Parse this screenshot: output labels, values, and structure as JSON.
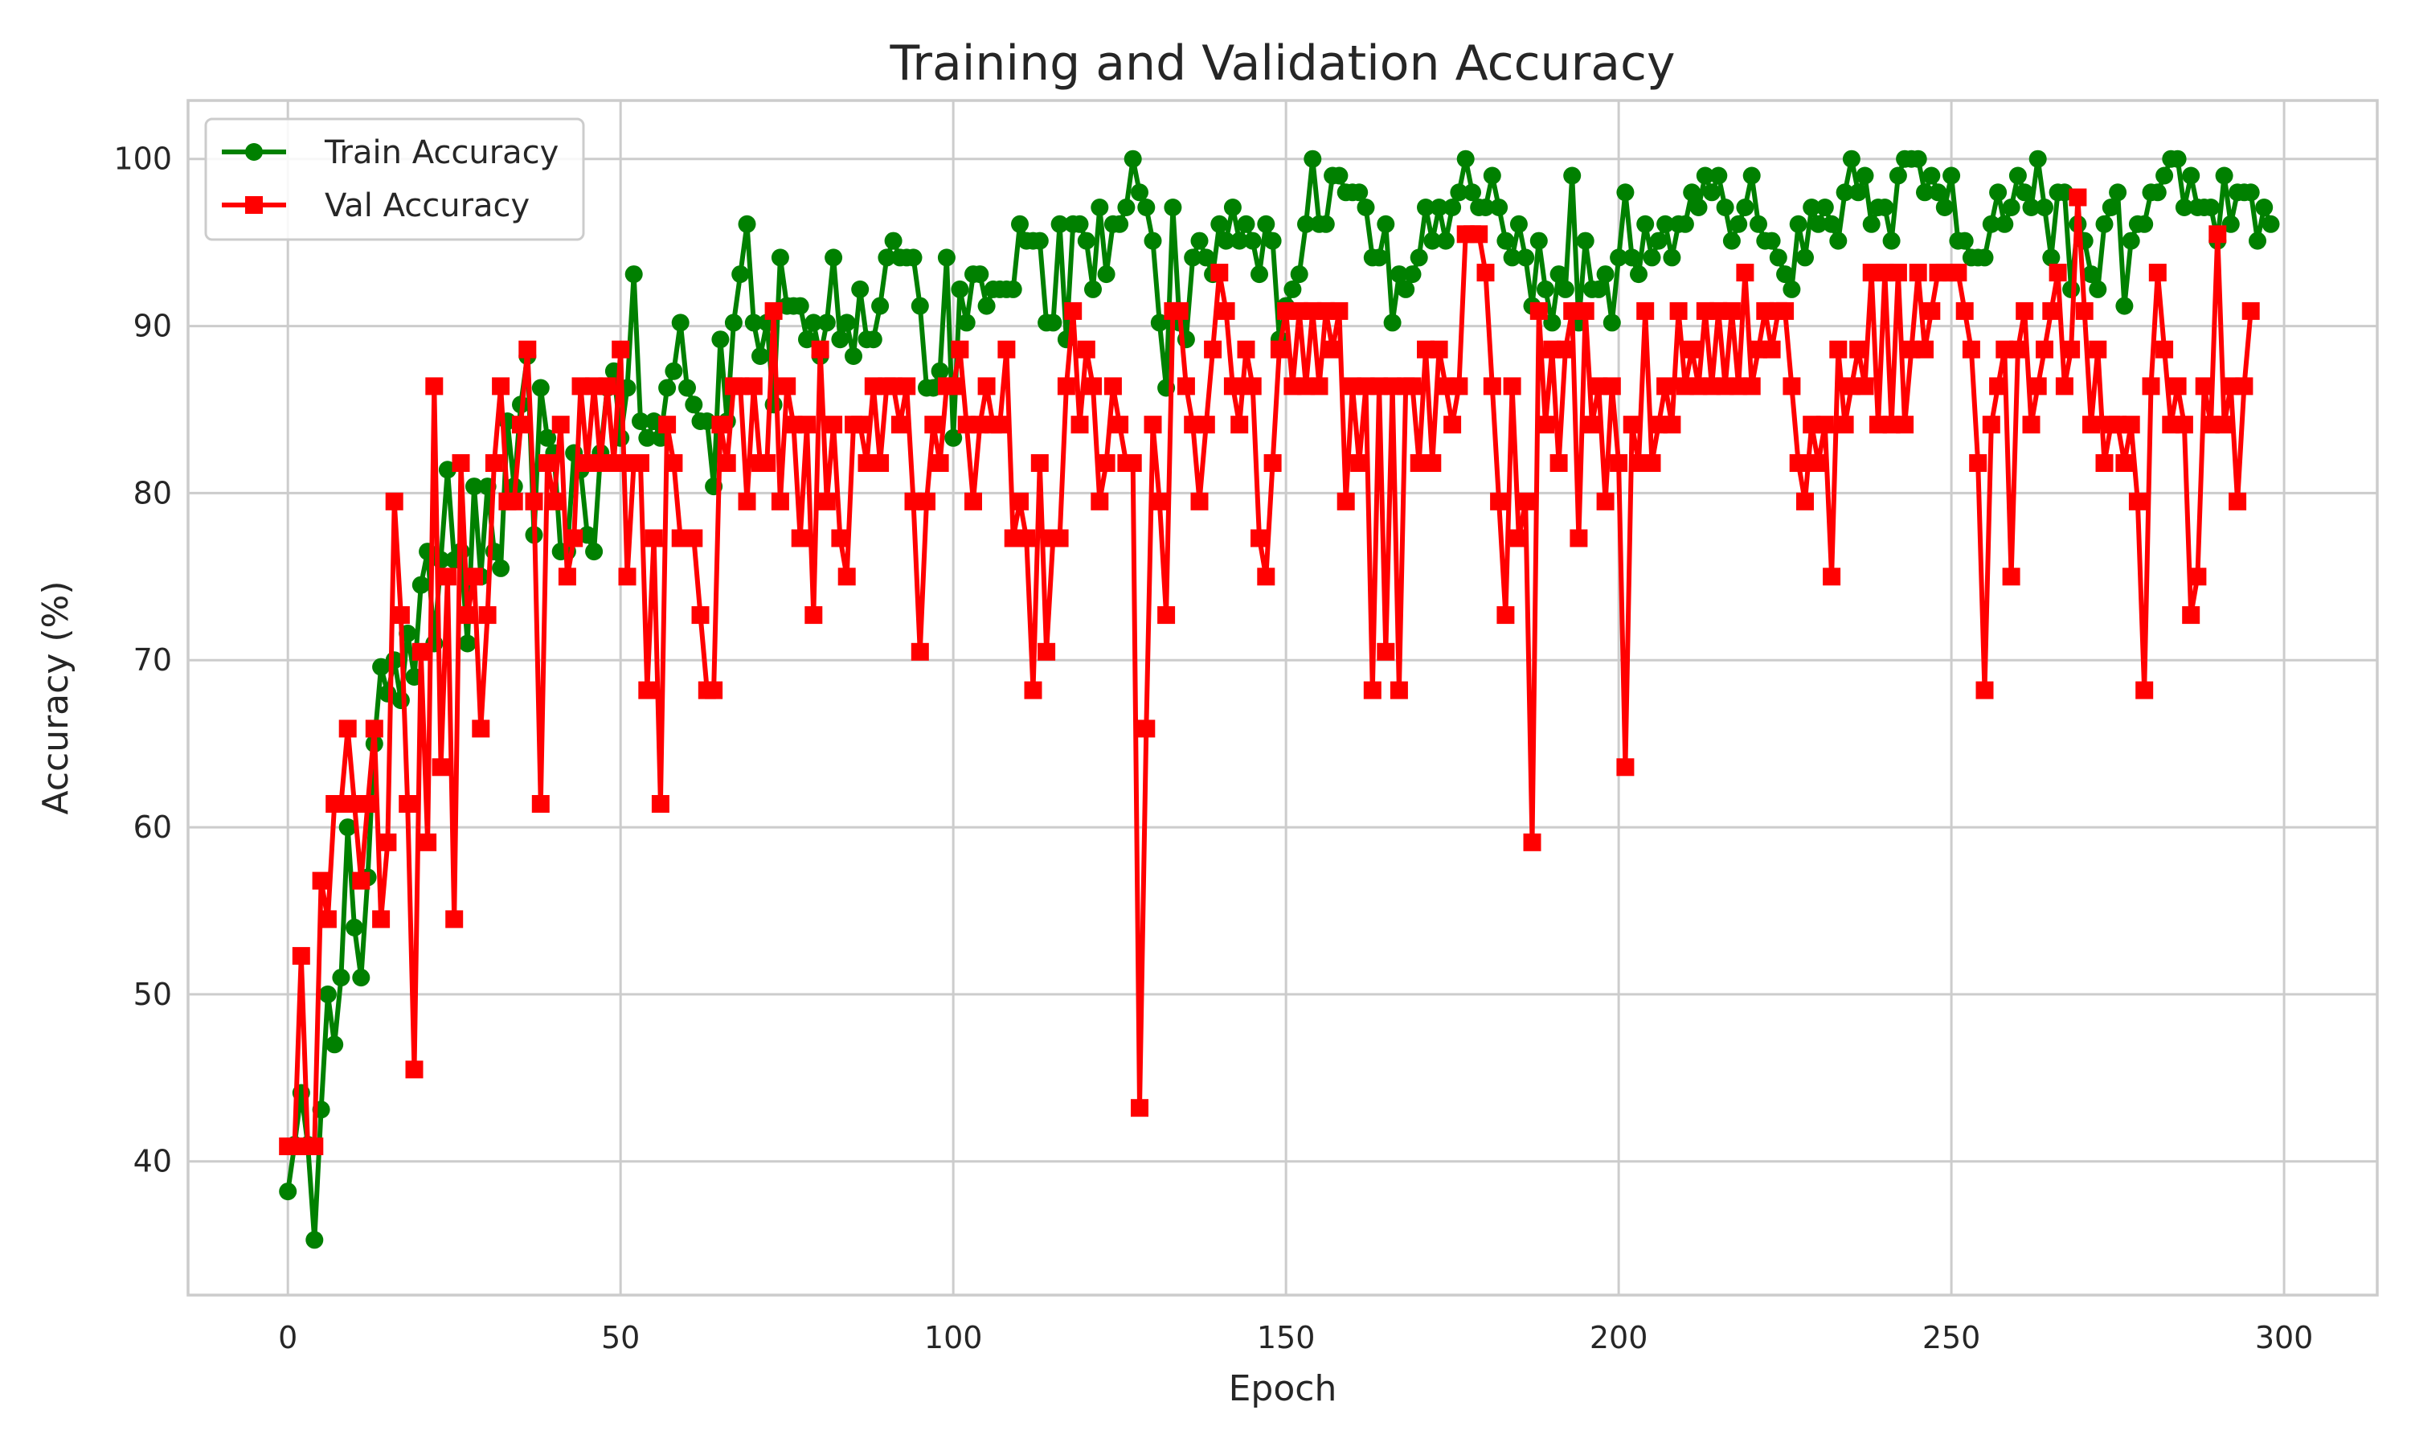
{
  "chart_data": {
    "type": "line",
    "title": "Training and Validation Accuracy",
    "xlabel": "Epoch",
    "ylabel": "Accuracy (%)",
    "xlim": [
      -15,
      314
    ],
    "ylim": [
      32,
      103.5
    ],
    "xticks": [
      0,
      50,
      100,
      150,
      200,
      250,
      300
    ],
    "yticks": [
      40,
      50,
      60,
      70,
      80,
      90,
      100
    ],
    "grid": true,
    "legend_position": "top-left",
    "x_start": 0,
    "series": [
      {
        "name": "Train Accuracy",
        "color": "#008000",
        "marker": "circle",
        "values": [
          38.2,
          41.0,
          44.1,
          41.0,
          35.3,
          43.1,
          50.0,
          47.0,
          51.0,
          60.0,
          54.0,
          51.0,
          57.0,
          65.0,
          69.6,
          68.0,
          70.0,
          67.6,
          71.6,
          69.0,
          74.5,
          76.5,
          71.0,
          76.0,
          81.4,
          76.0,
          76.5,
          71.0,
          80.4,
          75.0,
          80.4,
          76.5,
          75.5,
          84.3,
          80.4,
          85.3,
          88.2,
          77.5,
          86.3,
          83.3,
          82.4,
          76.5,
          76.5,
          82.4,
          81.4,
          77.5,
          76.5,
          82.4,
          86.3,
          87.3,
          83.3,
          86.3,
          93.1,
          84.3,
          83.3,
          84.3,
          83.3,
          86.3,
          87.3,
          90.2,
          86.3,
          85.3,
          84.3,
          84.3,
          80.4,
          89.2,
          84.3,
          90.2,
          93.1,
          96.1,
          90.2,
          88.2,
          90.2,
          85.3,
          94.1,
          91.2,
          91.2,
          91.2,
          89.2,
          90.2,
          88.2,
          90.2,
          94.1,
          89.2,
          90.2,
          88.2,
          92.2,
          89.2,
          89.2,
          91.2,
          94.1,
          95.1,
          94.1,
          94.1,
          94.1,
          91.2,
          86.3,
          86.3,
          87.3,
          94.1,
          83.3,
          92.2,
          90.2,
          93.1,
          93.1,
          91.2,
          92.2,
          92.2,
          92.2,
          92.2,
          96.1,
          95.1,
          95.1,
          95.1,
          90.2,
          90.2,
          96.1,
          89.2,
          96.1,
          96.1,
          95.1,
          92.2,
          97.1,
          93.1,
          96.1,
          96.1,
          97.1,
          100.0,
          98.0,
          97.1,
          95.1,
          90.2,
          86.3,
          97.1,
          90.2,
          89.2,
          94.1,
          95.1,
          94.1,
          93.1,
          96.1,
          95.1,
          97.1,
          95.1,
          96.1,
          95.1,
          93.1,
          96.1,
          95.1,
          89.2,
          91.2,
          92.2,
          93.1,
          96.1,
          100.0,
          96.1,
          96.1,
          99.0,
          99.0,
          98.0,
          98.0,
          98.0,
          97.1,
          94.1,
          94.1,
          96.1,
          90.2,
          93.1,
          92.2,
          93.1,
          94.1,
          97.1,
          95.1,
          97.1,
          95.1,
          97.1,
          98.0,
          100.0,
          98.0,
          97.1,
          97.1,
          99.0,
          97.1,
          95.1,
          94.1,
          96.1,
          94.1,
          91.2,
          95.1,
          92.2,
          90.2,
          93.1,
          92.2,
          99.0,
          90.2,
          95.1,
          92.2,
          92.2,
          93.1,
          90.2,
          94.1,
          98.0,
          94.1,
          93.1,
          96.1,
          94.1,
          95.1,
          96.1,
          94.1,
          96.1,
          96.1,
          98.0,
          97.1,
          99.0,
          98.0,
          99.0,
          97.1,
          95.1,
          96.1,
          97.1,
          99.0,
          96.1,
          95.1,
          95.1,
          94.1,
          93.1,
          92.2,
          96.1,
          94.1,
          97.1,
          96.1,
          97.1,
          96.1,
          95.1,
          98.0,
          100.0,
          98.0,
          99.0,
          96.1,
          97.1,
          97.1,
          95.1,
          99.0,
          100.0,
          100.0,
          100.0,
          98.0,
          99.0,
          98.0,
          97.1,
          99.0,
          95.1,
          95.1,
          94.1,
          94.1,
          94.1,
          96.1,
          98.0,
          96.1,
          97.1,
          99.0,
          98.0,
          97.1,
          100.0,
          97.1,
          94.1,
          98.0,
          98.0,
          92.2,
          96.1,
          95.1,
          93.1,
          92.2,
          96.1,
          97.1,
          98.0,
          91.2,
          95.1,
          96.1,
          96.1,
          98.0,
          98.0,
          99.0,
          100.0,
          100.0,
          97.1,
          99.0,
          97.1,
          97.1,
          97.1,
          95.1,
          99.0,
          96.1,
          98.0,
          98.0,
          98.0,
          95.1,
          97.1,
          96.1
        ]
      },
      {
        "name": "Val Accuracy",
        "color": "#ff0000",
        "marker": "square",
        "values": [
          40.9,
          40.9,
          52.3,
          40.9,
          40.9,
          56.8,
          54.5,
          61.4,
          61.4,
          65.9,
          61.4,
          56.8,
          61.4,
          65.9,
          54.5,
          59.1,
          79.5,
          72.7,
          61.4,
          45.5,
          70.5,
          59.1,
          86.4,
          63.6,
          75.0,
          54.5,
          81.8,
          72.7,
          75.0,
          65.9,
          72.7,
          81.8,
          86.4,
          79.5,
          79.5,
          84.1,
          88.6,
          79.5,
          61.4,
          81.8,
          79.5,
          84.1,
          75.0,
          77.3,
          86.4,
          81.8,
          86.4,
          81.8,
          86.4,
          81.8,
          88.6,
          75.0,
          81.8,
          81.8,
          68.2,
          77.3,
          61.4,
          84.1,
          81.8,
          77.3,
          77.3,
          77.3,
          72.7,
          68.2,
          68.2,
          84.1,
          81.8,
          86.4,
          86.4,
          79.5,
          86.4,
          81.8,
          81.8,
          90.9,
          79.5,
          86.4,
          84.1,
          77.3,
          84.1,
          72.7,
          88.6,
          79.5,
          84.1,
          77.3,
          75.0,
          84.1,
          84.1,
          81.8,
          86.4,
          81.8,
          86.4,
          86.4,
          84.1,
          86.4,
          79.5,
          70.5,
          79.5,
          84.1,
          81.8,
          86.4,
          86.4,
          88.6,
          84.1,
          79.5,
          84.1,
          86.4,
          84.1,
          84.1,
          88.6,
          77.3,
          79.5,
          77.3,
          68.2,
          81.8,
          70.5,
          77.3,
          77.3,
          86.4,
          90.9,
          84.1,
          88.6,
          86.4,
          79.5,
          81.8,
          86.4,
          84.1,
          81.8,
          81.8,
          43.2,
          65.9,
          84.1,
          79.5,
          72.7,
          90.9,
          90.9,
          86.4,
          84.1,
          79.5,
          84.1,
          88.6,
          93.2,
          90.9,
          86.4,
          84.1,
          88.6,
          86.4,
          77.3,
          75.0,
          81.8,
          88.6,
          90.9,
          86.4,
          90.9,
          86.4,
          90.9,
          86.4,
          90.9,
          88.6,
          90.9,
          79.5,
          86.4,
          81.8,
          86.4,
          68.2,
          86.4,
          70.5,
          86.4,
          68.2,
          86.4,
          86.4,
          81.8,
          88.6,
          81.8,
          88.6,
          86.4,
          84.1,
          86.4,
          95.5,
          95.5,
          95.5,
          93.2,
          86.4,
          79.5,
          72.7,
          86.4,
          77.3,
          79.5,
          59.1,
          90.9,
          84.1,
          88.6,
          81.8,
          88.6,
          90.9,
          77.3,
          90.9,
          84.1,
          86.4,
          79.5,
          86.4,
          81.8,
          63.6,
          84.1,
          81.8,
          90.9,
          81.8,
          84.1,
          86.4,
          84.1,
          90.9,
          86.4,
          88.6,
          86.4,
          90.9,
          86.4,
          90.9,
          86.4,
          90.9,
          86.4,
          93.2,
          86.4,
          88.6,
          90.9,
          88.6,
          90.9,
          90.9,
          86.4,
          81.8,
          79.5,
          84.1,
          81.8,
          84.1,
          75.0,
          88.6,
          84.1,
          86.4,
          88.6,
          86.4,
          93.2,
          84.1,
          93.2,
          84.1,
          93.2,
          84.1,
          88.6,
          93.2,
          88.6,
          90.9,
          93.2,
          93.2,
          93.2,
          93.2,
          90.9,
          88.6,
          81.8,
          68.2,
          84.1,
          86.4,
          88.6,
          75.0,
          88.6,
          90.9,
          84.1,
          86.4,
          88.6,
          90.9,
          93.2,
          86.4,
          88.6,
          97.7,
          90.9,
          84.1,
          88.6,
          81.8,
          84.1,
          84.1,
          81.8,
          84.1,
          79.5,
          68.2,
          86.4,
          93.2,
          88.6,
          84.1,
          86.4,
          84.1,
          72.7,
          75.0,
          86.4,
          84.1,
          95.5,
          84.1,
          86.4,
          79.5,
          86.4,
          90.9
        ]
      }
    ]
  }
}
